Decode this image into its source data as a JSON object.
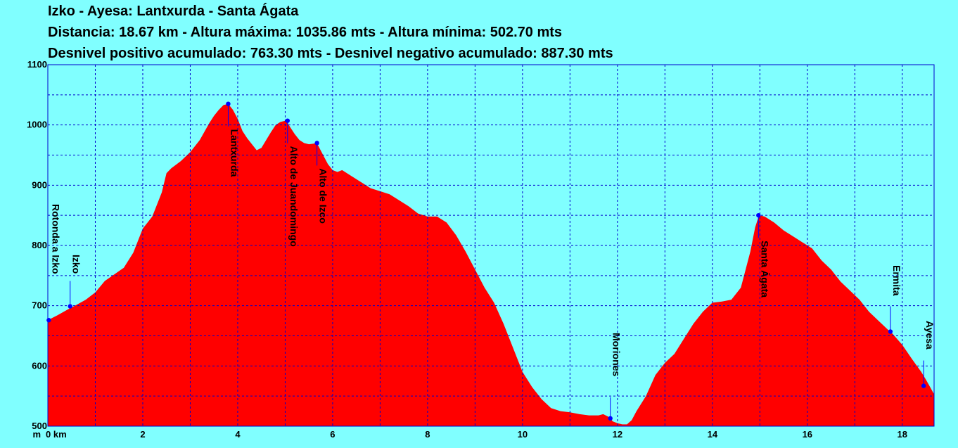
{
  "header": {
    "title": "Izko - Ayesa:  Lantxurda - Santa Ágata",
    "line2": "Distancia: 18.67 km - Altura máxima: 1035.86 mts - Altura mínima: 502.70 mts",
    "line3": "Desnivel positivo acumulado: 763.30 mts - Desnivel negativo acumulado: 887.30 mts"
  },
  "colors": {
    "background": "#80FFFF",
    "profile_fill": "#FF0000",
    "grid": "#0000CC",
    "marker": "#0000FF"
  },
  "chart_data": {
    "type": "area",
    "title": "Izko - Ayesa:  Lantxurda - Santa Ágata",
    "x_unit_label": "km",
    "y_unit_label": "m",
    "xlim": [
      0,
      18.67
    ],
    "ylim": [
      500,
      1100
    ],
    "x_ticks": [
      0,
      2,
      4,
      6,
      8,
      10,
      12,
      14,
      16,
      18
    ],
    "x_tick_labels": [
      "0 km",
      "2",
      "4",
      "6",
      "8",
      "10",
      "12",
      "14",
      "16",
      "18"
    ],
    "y_ticks": [
      500,
      600,
      700,
      800,
      900,
      1000,
      1100
    ],
    "grid": true,
    "series": [
      {
        "x": [
          0,
          0.2,
          0.45,
          0.55,
          0.8,
          1.0,
          1.2,
          1.4,
          1.6,
          1.8,
          2.0,
          2.2,
          2.4,
          2.5,
          2.6,
          2.8,
          3.0,
          3.2,
          3.4,
          3.5,
          3.6,
          3.7,
          3.8,
          3.9,
          4.0,
          4.1,
          4.2,
          4.3,
          4.4,
          4.5,
          4.6,
          4.7,
          4.8,
          4.9,
          5.0,
          5.05,
          5.1,
          5.2,
          5.3,
          5.4,
          5.5,
          5.6,
          5.65,
          5.7,
          5.8,
          5.9,
          6.0,
          6.1,
          6.2,
          6.4,
          6.6,
          6.8,
          7.0,
          7.2,
          7.4,
          7.6,
          7.8,
          8.0,
          8.2,
          8.4,
          8.6,
          8.8,
          9.0,
          9.2,
          9.4,
          9.6,
          9.8,
          10.0,
          10.2,
          10.4,
          10.6,
          10.8,
          11.0,
          11.2,
          11.4,
          11.6,
          11.7,
          11.8,
          11.85,
          11.9,
          12.0,
          12.1,
          12.2,
          12.3,
          12.4,
          12.6,
          12.8,
          13.0,
          13.2,
          13.4,
          13.6,
          13.8,
          14.0,
          14.2,
          14.4,
          14.6,
          14.8,
          14.9,
          14.97,
          15.0,
          15.1,
          15.3,
          15.5,
          15.7,
          15.9,
          16.1,
          16.3,
          16.5,
          16.7,
          16.9,
          17.1,
          17.3,
          17.5,
          17.7,
          17.75,
          17.8,
          18.0,
          18.2,
          18.4,
          18.5,
          18.6,
          18.67
        ],
        "y": [
          676,
          684,
          695,
          699,
          710,
          722,
          741,
          752,
          763,
          788,
          828,
          848,
          888,
          920,
          928,
          940,
          955,
          975,
          1003,
          1015,
          1025,
          1033,
          1035,
          1025,
          1010,
          990,
          978,
          968,
          958,
          962,
          975,
          988,
          1000,
          1005,
          1007,
          1004,
          997,
          985,
          975,
          970,
          968,
          969,
          970,
          965,
          950,
          935,
          925,
          922,
          925,
          915,
          905,
          895,
          890,
          885,
          875,
          865,
          853,
          848,
          848,
          838,
          817,
          790,
          760,
          730,
          705,
          670,
          630,
          590,
          565,
          545,
          530,
          525,
          523,
          520,
          518,
          518,
          520,
          516,
          513,
          508,
          505,
          503,
          503,
          510,
          525,
          550,
          585,
          605,
          620,
          645,
          670,
          690,
          705,
          707,
          710,
          730,
          790,
          830,
          847,
          850,
          848,
          838,
          825,
          815,
          805,
          795,
          775,
          760,
          740,
          725,
          710,
          690,
          675,
          660,
          657,
          653,
          635,
          612,
          590,
          577,
          563,
          553
        ]
      }
    ],
    "waypoints": [
      {
        "name": "Rotonda a Izko",
        "km": 0.02,
        "ele": 676
      },
      {
        "name": "Izko",
        "km": 0.47,
        "ele": 699
      },
      {
        "name": "Lantxurda",
        "km": 3.8,
        "ele": 1035
      },
      {
        "name": "Alto de Juandomingo",
        "km": 5.05,
        "ele": 1007
      },
      {
        "name": "Alto de Izco",
        "km": 5.67,
        "ele": 970
      },
      {
        "name": "Moriones",
        "km": 11.85,
        "ele": 513
      },
      {
        "name": "Santa Ágata",
        "km": 14.97,
        "ele": 850
      },
      {
        "name": "Ermita",
        "km": 17.75,
        "ele": 657
      },
      {
        "name": "Ayesa",
        "km": 18.45,
        "ele": 567
      }
    ]
  }
}
